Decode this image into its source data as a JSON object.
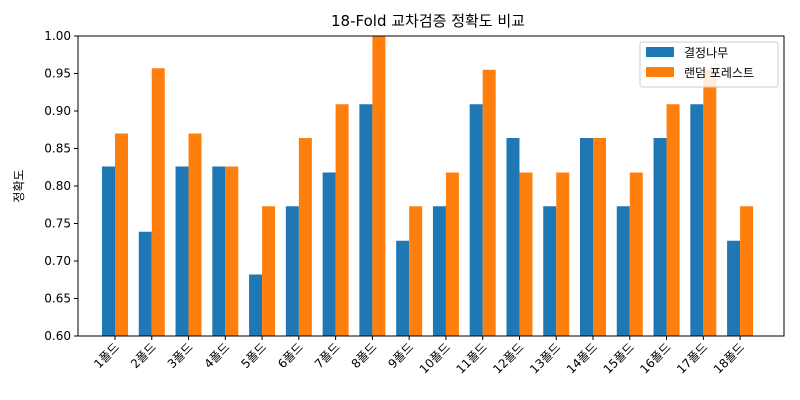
{
  "chart_data": {
    "type": "bar",
    "title": "18-Fold 교차검증 정확도 비교",
    "xlabel": "",
    "ylabel": "정확도",
    "ylim": [
      0.6,
      1.0
    ],
    "yticks": [
      "0.60",
      "0.65",
      "0.70",
      "0.75",
      "0.80",
      "0.85",
      "0.90",
      "0.95",
      "1.00"
    ],
    "grid": false,
    "legend_position": "top-right",
    "categories": [
      "1폴드",
      "2폴드",
      "3폴드",
      "4폴드",
      "5폴드",
      "6폴드",
      "7폴드",
      "8폴드",
      "9폴드",
      "10폴드",
      "11폴드",
      "12폴드",
      "13폴드",
      "14폴드",
      "15폴드",
      "16폴드",
      "17폴드",
      "18폴드"
    ],
    "series": [
      {
        "name": "결정나무",
        "color": "#1f77b4",
        "values": [
          0.826,
          0.739,
          0.826,
          0.826,
          0.682,
          0.773,
          0.818,
          0.909,
          0.727,
          0.773,
          0.909,
          0.864,
          0.773,
          0.864,
          0.773,
          0.864,
          0.909,
          0.727
        ]
      },
      {
        "name": "랜덤 포레스트",
        "color": "#ff7f0e",
        "values": [
          0.87,
          0.957,
          0.87,
          0.826,
          0.773,
          0.864,
          0.909,
          1.0,
          0.773,
          0.818,
          0.955,
          0.818,
          0.818,
          0.864,
          0.818,
          0.909,
          0.955,
          0.773
        ]
      }
    ]
  }
}
